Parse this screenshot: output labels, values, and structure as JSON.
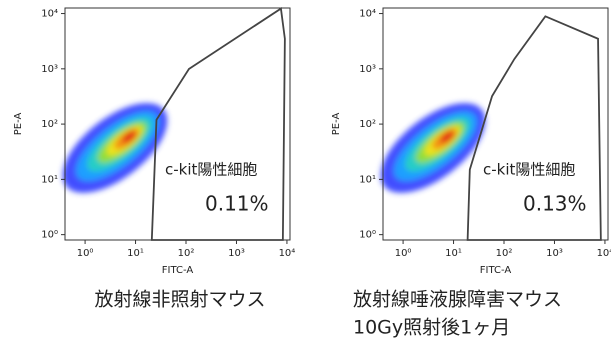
{
  "chart_data": [
    {
      "type": "scatter",
      "log_x": true,
      "log_y": true,
      "xlabel": "FITC-A",
      "ylabel": "PE-A",
      "xlim": [
        0.4,
        11500
      ],
      "ylim": [
        0.8,
        12600
      ],
      "xticks": [
        {
          "value": 1,
          "label": "10⁰"
        },
        {
          "value": 10,
          "label": "10¹"
        },
        {
          "value": 100,
          "label": "10²"
        },
        {
          "value": 1000,
          "label": "10³"
        },
        {
          "value": 10000,
          "label": "10⁴"
        }
      ],
      "yticks": [
        {
          "value": 1,
          "label": "10⁰"
        },
        {
          "value": 10,
          "label": "10¹"
        },
        {
          "value": 100,
          "label": "10²"
        },
        {
          "value": 1000,
          "label": "10³"
        },
        {
          "value": 10000,
          "label": "10⁴"
        }
      ],
      "gate": {
        "label": "c-kit陽性細胞",
        "value": 0.11,
        "value_label": "0.11%",
        "color": "#444444",
        "x": [
          115,
          7600,
          9100,
          8300,
          21,
          26
        ],
        "y": [
          1000,
          12300,
          3500,
          0.8,
          0.8,
          120
        ]
      },
      "caption": [
        "放射線非照射マウス"
      ]
    },
    {
      "type": "scatter",
      "log_x": true,
      "log_y": true,
      "xlabel": "FITC-A",
      "ylabel": "PE-A",
      "xlim": [
        0.4,
        11500
      ],
      "ylim": [
        0.8,
        12600
      ],
      "xticks": [
        {
          "value": 1,
          "label": "10⁰"
        },
        {
          "value": 10,
          "label": "10¹"
        },
        {
          "value": 100,
          "label": "10²"
        },
        {
          "value": 1000,
          "label": "10³"
        },
        {
          "value": 10000,
          "label": "10⁴"
        }
      ],
      "yticks": [
        {
          "value": 1,
          "label": "10⁰"
        },
        {
          "value": 10,
          "label": "10¹"
        },
        {
          "value": 100,
          "label": "10²"
        },
        {
          "value": 1000,
          "label": "10³"
        },
        {
          "value": 10000,
          "label": "10⁴"
        }
      ],
      "gate": {
        "label": "c-kit陽性細胞",
        "value": 0.13,
        "value_label": "0.13%",
        "color": "#444444",
        "x": [
          19,
          21,
          58,
          160,
          660,
          7300,
          8300
        ],
        "y": [
          0.8,
          15,
          320,
          1500,
          8900,
          3500,
          0.8
        ]
      },
      "caption": [
        "放射線唾液腺障害マウス",
        "10Gy照射後1ヶ月"
      ]
    }
  ]
}
